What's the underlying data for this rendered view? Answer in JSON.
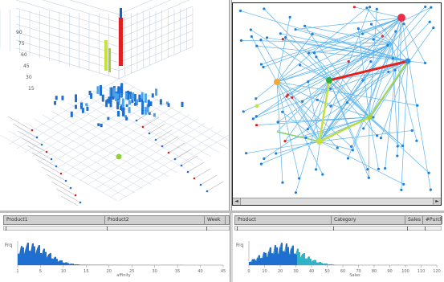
{
  "left_strip": {
    "columns": [
      "Product1",
      "Product2",
      "Week"
    ]
  },
  "right_strip": {
    "columns": [
      "Product",
      "Category",
      "Sales",
      "#Purch"
    ]
  },
  "left_hist": {
    "ylabel": "Frq",
    "ticks": [
      "1",
      "5",
      "10",
      "15",
      "20",
      "25",
      "30",
      "35",
      "40",
      "45"
    ],
    "xlabel": "affinity"
  },
  "right_hist": {
    "ylabel": "Frq",
    "ticks": [
      "0",
      "10",
      "20",
      "30",
      "40",
      "50",
      "60",
      "70",
      "80",
      "90",
      "100",
      "110",
      "120"
    ],
    "xlabel": "Sales"
  },
  "scroll": {
    "left_arrow": "◄",
    "right_arrow": "►"
  },
  "colors": {
    "accent": "#2a7fd6",
    "highlight": "#e23b3b",
    "lime": "#c8e03c",
    "panel": "#cfcfcf"
  }
}
